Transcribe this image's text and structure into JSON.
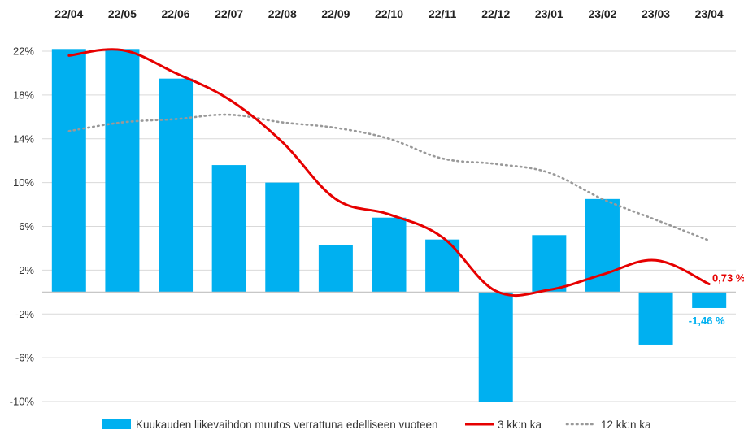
{
  "chart_data": {
    "type": "bar",
    "title": "",
    "xlabel": "",
    "ylabel": "",
    "categories": [
      "22/04",
      "22/05",
      "22/06",
      "22/07",
      "22/08",
      "22/09",
      "22/10",
      "22/11",
      "22/12",
      "23/01",
      "23/02",
      "23/03",
      "23/04"
    ],
    "ylim": [
      -10,
      24
    ],
    "yticks": [
      -10,
      -6,
      -2,
      2,
      6,
      10,
      14,
      18,
      22
    ],
    "ytick_labels": [
      "-10%",
      "-6%",
      "-2%",
      "2%",
      "6%",
      "10%",
      "14%",
      "18%",
      "22%"
    ],
    "grid": true,
    "legend_position": "bottom",
    "series": [
      {
        "name": "Kuukauden liikevaihdon muutos verrattuna edelliseen vuoteen",
        "type": "bar",
        "color": "#00b0f0",
        "values": [
          22.2,
          22.2,
          19.5,
          11.6,
          10.0,
          4.3,
          6.8,
          4.8,
          -10.0,
          5.2,
          8.5,
          -4.8,
          -1.46
        ]
      },
      {
        "name": "3 kk:n ka",
        "type": "line",
        "smooth": true,
        "color": "#e60000",
        "values": [
          21.6,
          22.1,
          20.0,
          17.6,
          13.7,
          8.5,
          7.1,
          5.0,
          0.1,
          0.2,
          1.6,
          2.9,
          0.73
        ]
      },
      {
        "name": "12 kk:n ka",
        "type": "line",
        "dashed": true,
        "smooth": true,
        "color": "#999999",
        "values": [
          14.7,
          15.5,
          15.8,
          16.2,
          15.5,
          15.0,
          14.0,
          12.2,
          11.7,
          10.9,
          8.5,
          6.6,
          4.7
        ]
      }
    ],
    "annotations": [
      {
        "series": 1,
        "index": 12,
        "text": "0,73 %",
        "color": "#e60000"
      },
      {
        "series": 0,
        "index": 12,
        "text": "-1,46 %",
        "color": "#00b0f0"
      }
    ]
  }
}
